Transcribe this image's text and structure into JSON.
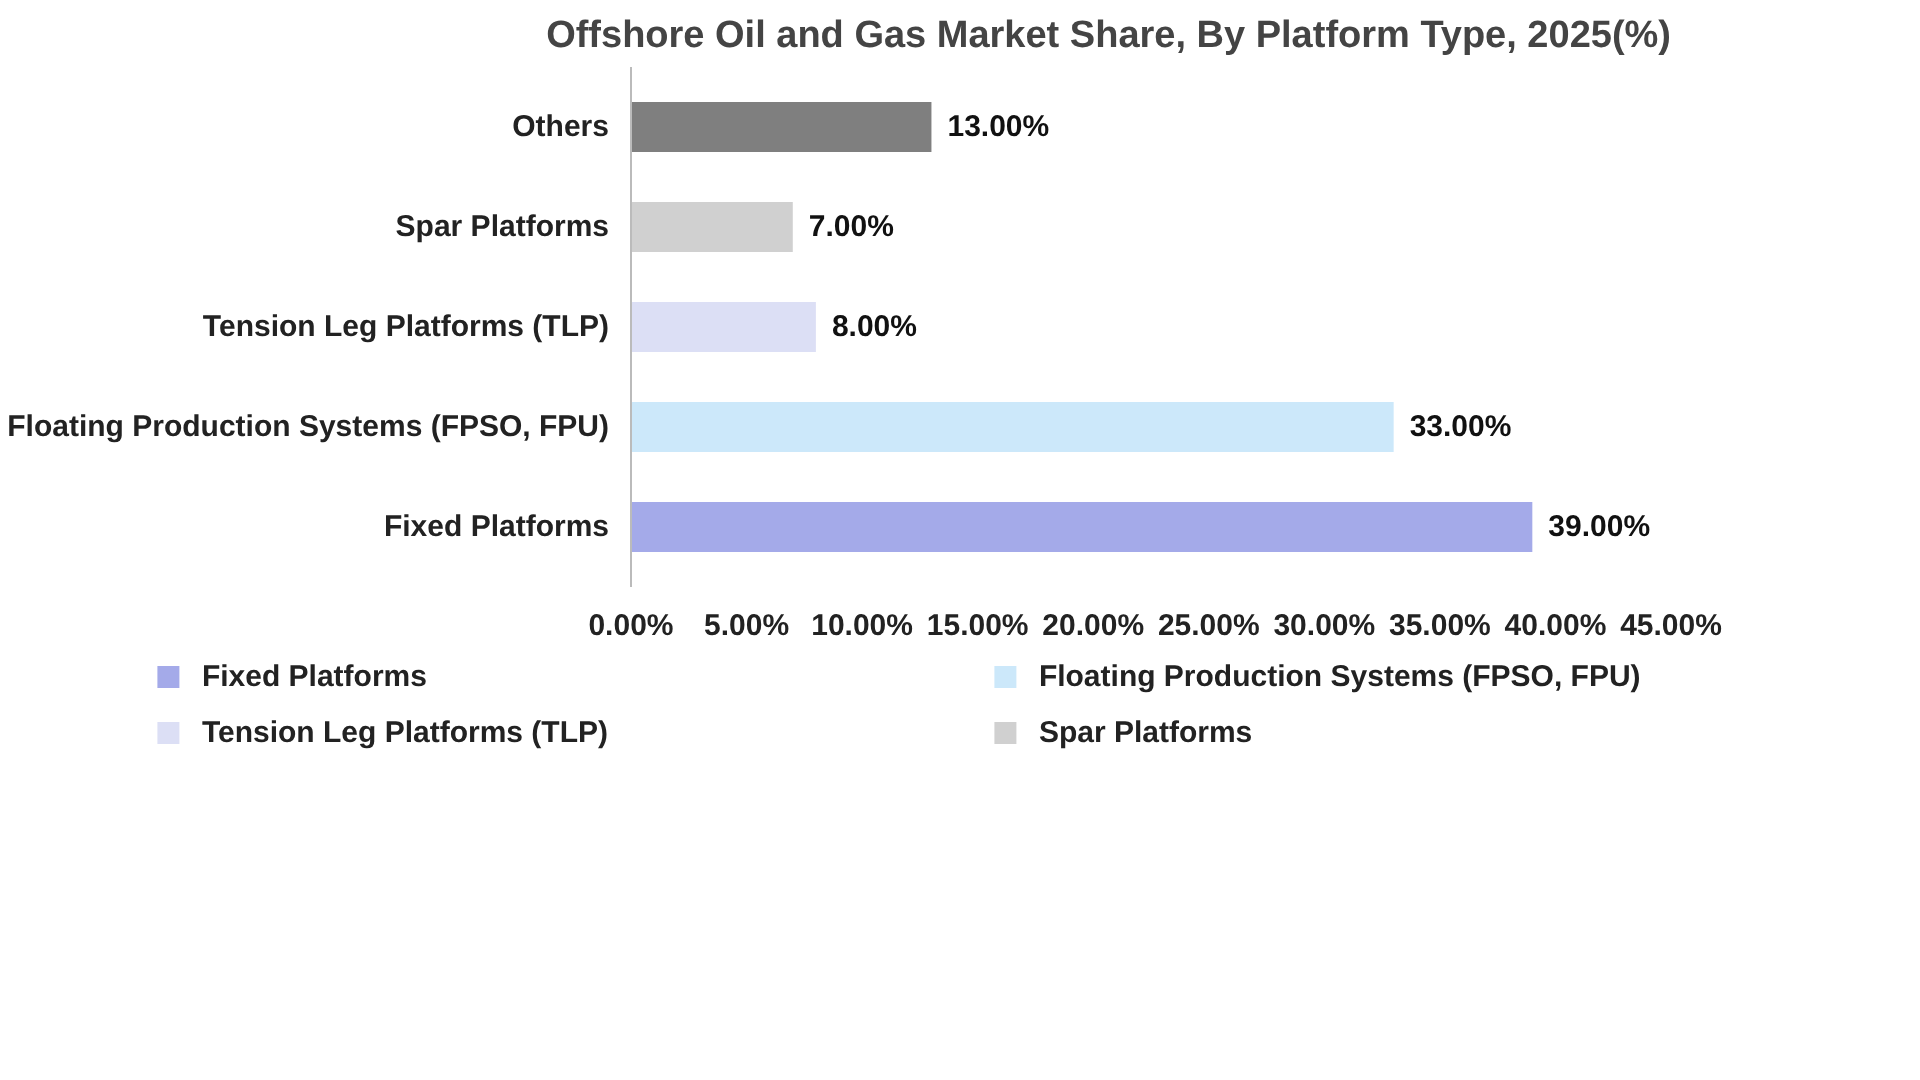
{
  "chart_data": {
    "type": "bar",
    "orientation": "horizontal",
    "title": "Offshore Oil and Gas Market Share, By Platform Type, 2025(%)",
    "categories": [
      "Others",
      "Spar Platforms",
      "Tension Leg Platforms (TLP)",
      "Floating Production Systems (FPSO, FPU)",
      "Fixed Platforms"
    ],
    "series": [
      {
        "name": "Fixed Platforms",
        "color": "#a4aae9",
        "values": [
          null,
          null,
          null,
          null,
          39
        ],
        "value_labels": [
          null,
          null,
          null,
          null,
          "39.00%"
        ]
      },
      {
        "name": "Floating Production Systems (FPSO, FPU)",
        "color": "#cce8fa",
        "values": [
          null,
          null,
          null,
          33,
          null
        ],
        "value_labels": [
          null,
          null,
          null,
          "33.00%",
          null
        ]
      },
      {
        "name": "Tension Leg Platforms (TLP)",
        "color": "#dcdff5",
        "values": [
          null,
          null,
          8,
          null,
          null
        ],
        "value_labels": [
          null,
          null,
          "8.00%",
          null,
          null
        ]
      },
      {
        "name": "Spar Platforms",
        "color": "#d0d0d0",
        "values": [
          null,
          7,
          null,
          null,
          null
        ],
        "value_labels": [
          null,
          "7.00%",
          null,
          null,
          null
        ]
      },
      {
        "color": "#7f7f7f",
        "values": [
          13,
          null,
          null,
          null,
          null
        ],
        "value_labels": [
          "13.00%",
          null,
          null,
          null,
          null
        ]
      }
    ],
    "xlim": [
      0,
      45
    ],
    "xticks": [
      {
        "value": 0,
        "label": "0.00%"
      },
      {
        "value": 5,
        "label": "5.00%"
      },
      {
        "value": 10,
        "label": "10.00%"
      },
      {
        "value": 15,
        "label": "15.00%"
      },
      {
        "value": 20,
        "label": "20.00%"
      },
      {
        "value": 25,
        "label": "25.00%"
      },
      {
        "value": 30,
        "label": "30.00%"
      },
      {
        "value": 35,
        "label": "35.00%"
      },
      {
        "value": 40,
        "label": "40.00%"
      },
      {
        "value": 45,
        "label": "45.00%"
      }
    ],
    "legend": "bottom"
  }
}
